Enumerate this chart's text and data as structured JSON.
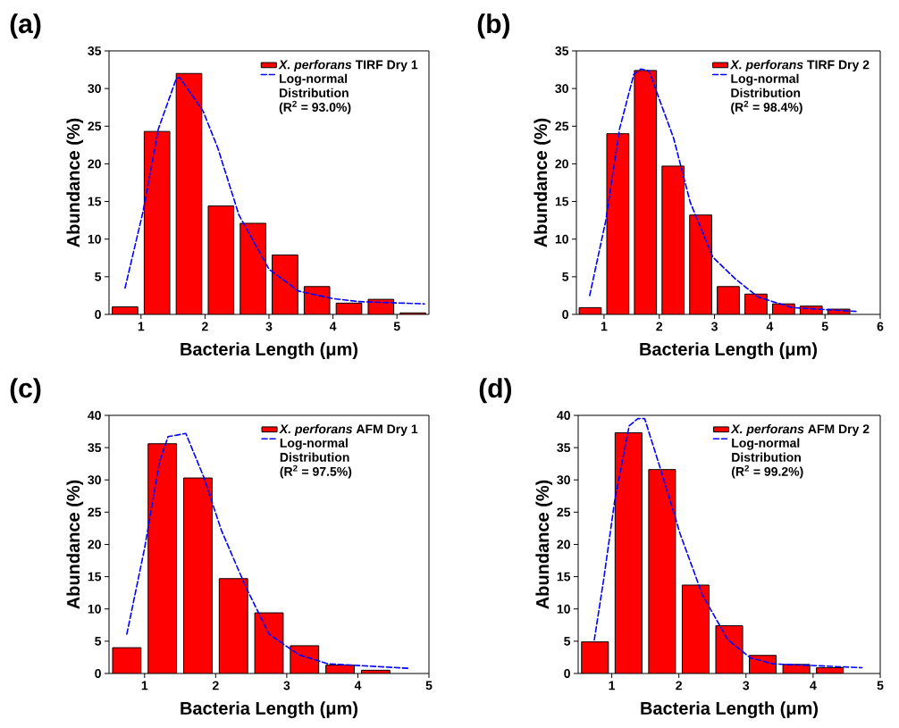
{
  "chart_data": [
    {
      "type": "histogram",
      "annotations": [
        "(a)"
      ],
      "xlabel": "Bacteria Length (μm)",
      "ylabel": "Abundance (%)",
      "xlim": [
        0.5,
        5.5
      ],
      "xticks": [
        1,
        2,
        3,
        4,
        5
      ],
      "ylim": [
        0,
        35
      ],
      "yticks": [
        0,
        5,
        10,
        15,
        20,
        25,
        30,
        35
      ],
      "legend": "top right",
      "series": [
        {
          "name": "*X. perforans* TIRF Dry 1",
          "color": "#ff0000",
          "bins": [
            0.5,
            1.0,
            1.5,
            2.0,
            2.5,
            3.0,
            3.5,
            4.0,
            4.5,
            5.0,
            5.5
          ],
          "values": [
            1.0,
            24.3,
            32.0,
            14.4,
            12.1,
            7.9,
            3.7,
            1.5,
            2.0,
            0.2
          ]
        },
        {
          "type": "line",
          "name": "Log-normal Distribution (R$^{2}$ = 93.0%)",
          "color": "#0000ff",
          "line_style": "dashed",
          "x": [
            0.75,
            1.03,
            1.27,
            1.55,
            1.6,
            1.97,
            2.2,
            2.53,
            3.0,
            3.46,
            4.0,
            4.4,
            5.43
          ],
          "values": [
            3.5,
            13.6,
            24.6,
            31.3,
            31.5,
            27.0,
            22.1,
            13.2,
            6.0,
            3.1,
            2.1,
            1.7,
            1.4
          ]
        }
      ]
    },
    {
      "type": "histogram",
      "annotations": [
        "(b)"
      ],
      "xlabel": "Bacteria Length (μm)",
      "ylabel": "Abundance (%)",
      "xlim": [
        0.5,
        6
      ],
      "xticks": [
        1,
        2,
        3,
        4,
        5,
        6
      ],
      "ylim": [
        0,
        35
      ],
      "yticks": [
        0,
        5,
        10,
        15,
        20,
        25,
        30,
        35
      ],
      "legend": "top right",
      "series": [
        {
          "name": "*X. perforans* TIRF Dry 2",
          "color": "#ff0000",
          "bins": [
            0.5,
            1.0,
            1.5,
            2.0,
            2.5,
            3.0,
            3.5,
            4.0,
            4.5,
            5.0,
            5.5
          ],
          "values": [
            0.9,
            24.0,
            32.4,
            19.7,
            13.2,
            3.7,
            2.7,
            1.4,
            1.1,
            0.7
          ]
        },
        {
          "type": "line",
          "name": "Log-normal Distribution (R$^{2}$ = 98.4%)",
          "color": "#0000ff",
          "line_style": "dashed",
          "x": [
            0.74,
            1.03,
            1.28,
            1.54,
            1.67,
            1.82,
            2.0,
            2.26,
            2.56,
            2.97,
            3.38,
            3.79,
            4.41,
            5.56
          ],
          "values": [
            2.5,
            12.4,
            24.6,
            31.9,
            32.6,
            32.3,
            28.6,
            23.4,
            14.9,
            7.6,
            4.7,
            2.3,
            0.9,
            0.4
          ]
        }
      ]
    },
    {
      "type": "histogram",
      "annotations": [
        "(c)"
      ],
      "xlabel": "Bacteria Length (μm)",
      "ylabel": "Abundance (%)",
      "xlim": [
        0.5,
        5
      ],
      "xticks": [
        1,
        2,
        3,
        4,
        5
      ],
      "ylim": [
        0,
        40
      ],
      "yticks": [
        0,
        5,
        10,
        15,
        20,
        25,
        30,
        35,
        40
      ],
      "legend": "top right",
      "series": [
        {
          "name": "*X. perforans* AFM Dry 1",
          "color": "#ff0000",
          "bins": [
            0.5,
            1.0,
            1.5,
            2.0,
            2.5,
            3.0,
            3.5,
            4.0,
            4.5
          ],
          "values": [
            4.0,
            35.6,
            30.3,
            14.7,
            9.4,
            4.3,
            1.3,
            0.5
          ]
        },
        {
          "type": "line",
          "name": "Log-normal Distribution (R$^{2}$ = 97.5%)",
          "color": "#0000ff",
          "line_style": "dashed",
          "x": [
            0.75,
            1.0,
            1.21,
            1.33,
            1.58,
            1.83,
            2.08,
            2.42,
            2.75,
            3.17,
            3.58,
            4.71
          ],
          "values": [
            6.1,
            19.4,
            32.8,
            36.7,
            37.2,
            30.5,
            22.2,
            13.5,
            6.1,
            2.9,
            1.5,
            0.8
          ]
        }
      ]
    },
    {
      "type": "histogram",
      "annotations": [
        "(d)"
      ],
      "xlabel": "Bacteria Length (μm)",
      "ylabel": "Abundance (%)",
      "xlim": [
        0.5,
        5
      ],
      "xticks": [
        1,
        2,
        3,
        4,
        5
      ],
      "ylim": [
        0,
        40
      ],
      "yticks": [
        0,
        5,
        10,
        15,
        20,
        25,
        30,
        35,
        40
      ],
      "legend": "top right",
      "series": [
        {
          "name": "*X. perforans* AFM Dry 2",
          "color": "#ff0000",
          "bins": [
            0.5,
            1.0,
            1.5,
            2.0,
            2.5,
            3.0,
            3.5,
            4.0,
            4.5
          ],
          "values": [
            4.9,
            37.3,
            31.6,
            13.7,
            7.4,
            2.8,
            1.4,
            0.9
          ]
        },
        {
          "type": "line",
          "name": "Log-normal Distribution (R$^{2}$ = 99.2%)",
          "color": "#0000ff",
          "line_style": "dashed",
          "x": [
            0.74,
            0.88,
            1.05,
            1.26,
            1.39,
            1.49,
            1.72,
            2.02,
            2.35,
            2.73,
            3.07,
            3.4,
            4.73
          ],
          "values": [
            5.2,
            14.6,
            27.2,
            38.4,
            39.5,
            39.5,
            31.9,
            21.6,
            12.2,
            5.2,
            2.4,
            1.5,
            0.9
          ]
        }
      ]
    }
  ]
}
